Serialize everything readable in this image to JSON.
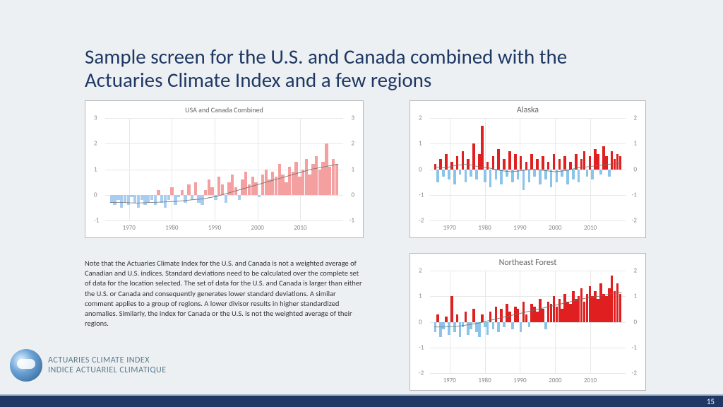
{
  "title": "Sample screen for the U.S. and Canada combined with the Actuaries Climate Index and a few regions",
  "note": "Note that the Actuaries Climate Index for the U.S. and Canada is not a weighted average of Canadian and U.S. indices. Standard deviations need to be calculated over the complete set of data for the location selected. The set of data for the U.S. and Canada is larger than either the U.S. or Canada and consequently generates lower standard deviations. A similar comment applies to a group of regions. A lower divisor results in higher standardized anomalies. Similarly, the index for Canada or the U.S. is not the weighted average of their regions.",
  "logo": {
    "line1": "ACTUARIES CLIMATE INDEX",
    "line2": "INDICE ACTUARIEL CLIMATIQUE"
  },
  "page_num": "15",
  "colors": {
    "pos_main": "#f4a0a0",
    "neg_main": "#a8cdf0",
    "pos_reg": "#e02020",
    "neg_reg": "#8ac4e8",
    "trend": "#707070"
  },
  "charts": {
    "main": {
      "title": "USA and Canada Combined",
      "ylim": [
        -1,
        3
      ],
      "yticks": [
        -1,
        0,
        1,
        2,
        3
      ],
      "xticks": [
        {
          "p": 10,
          "l": "1970"
        },
        {
          "p": 28,
          "l": "1980"
        },
        {
          "p": 46,
          "l": "1990"
        },
        {
          "p": 64,
          "l": "2000"
        },
        {
          "p": 82,
          "l": "2010"
        }
      ],
      "bars": [
        -0.3,
        -0.4,
        -0.2,
        -0.5,
        -0.3,
        -0.4,
        -0.1,
        -0.3,
        -0.5,
        -0.2,
        -0.4,
        -0.3,
        -0.2,
        -0.4,
        0.2,
        -0.3,
        -0.5,
        -0.2,
        0.3,
        -0.4,
        -0.1,
        0.2,
        -0.3,
        0.4,
        -0.2,
        0.5,
        -0.3,
        -0.4,
        0.2,
        0.6,
        0.3,
        -0.2,
        0.7,
        0.4,
        -0.3,
        0.5,
        0.8,
        0.3,
        -0.2,
        0.6,
        0.9,
        0.4,
        0.7,
        0.5,
        -0.1,
        0.8,
        1.0,
        0.6,
        0.9,
        0.7,
        1.2,
        0.8,
        0.5,
        1.1,
        0.9,
        1.3,
        0.7,
        1.0,
        1.4,
        0.8,
        1.2,
        1.5,
        1.0,
        1.3,
        2.0,
        1.1,
        1.4,
        1.2
      ],
      "trend": [
        -0.3,
        -0.3,
        -0.32,
        -0.3,
        -0.28,
        -0.25,
        -0.2,
        -0.15,
        -0.05,
        0.1,
        0.25,
        0.4,
        0.55,
        0.7,
        0.85,
        1.0,
        1.1,
        1.2
      ]
    },
    "alaska": {
      "title": "Alaska",
      "ylim": [
        -2,
        2
      ],
      "yticks": [
        -2,
        -1,
        0,
        1,
        2
      ],
      "xticks": [
        {
          "p": 10,
          "l": "1970"
        },
        {
          "p": 28,
          "l": "1980"
        },
        {
          "p": 46,
          "l": "1990"
        },
        {
          "p": 64,
          "l": "2000"
        },
        {
          "p": 82,
          "l": "2010"
        }
      ],
      "bars": [
        0.2,
        -0.5,
        0.4,
        -0.3,
        0.6,
        -0.4,
        0.3,
        -0.6,
        0.5,
        -0.2,
        0.7,
        -0.5,
        0.4,
        -0.3,
        1.0,
        -0.4,
        0.6,
        1.7,
        -0.5,
        0.3,
        -0.7,
        0.5,
        -0.4,
        0.8,
        -0.6,
        0.4,
        -0.3,
        0.7,
        -0.5,
        0.6,
        -0.4,
        0.5,
        -0.8,
        0.3,
        -0.5,
        0.6,
        -0.3,
        0.4,
        -0.6,
        0.5,
        -0.4,
        0.3,
        -0.7,
        0.6,
        -0.5,
        0.4,
        -0.3,
        0.5,
        -0.6,
        0.3,
        -0.4,
        0.6,
        -0.5,
        0.4,
        0.7,
        -0.3,
        0.5,
        -0.4,
        0.8,
        0.6,
        -0.2,
        0.9,
        0.5,
        -0.3,
        0.7,
        0.4,
        0.6,
        0.5
      ],
      "trend": [
        0.1,
        0.05,
        0.15,
        0.2,
        0.1,
        0.05,
        -0.05,
        -0.1,
        -0.05,
        0,
        -0.05,
        -0.1,
        -0.05,
        0.05,
        0.1,
        0.15,
        0.2,
        0.25
      ]
    },
    "nef": {
      "title": "Northeast Forest",
      "ylim": [
        -2,
        2
      ],
      "yticks": [
        -2,
        -1,
        0,
        1,
        2
      ],
      "xticks": [
        {
          "p": 10,
          "l": "1970"
        },
        {
          "p": 28,
          "l": "1980"
        },
        {
          "p": 46,
          "l": "1990"
        },
        {
          "p": 64,
          "l": "2000"
        },
        {
          "p": 82,
          "l": "2010"
        }
      ],
      "bars": [
        -0.4,
        0.3,
        -0.6,
        -0.3,
        0.2,
        -0.5,
        1.0,
        -0.4,
        0.3,
        -0.6,
        -0.2,
        0.4,
        -0.5,
        -0.3,
        0.5,
        -0.4,
        -0.6,
        0.3,
        -0.2,
        -0.5,
        0.4,
        -0.3,
        0.6,
        -0.4,
        0.5,
        -0.2,
        0.7,
        0.4,
        -0.3,
        0.6,
        0.5,
        -0.4,
        0.8,
        0.3,
        -0.2,
        0.7,
        0.6,
        0.4,
        0.9,
        0.5,
        -0.3,
        0.8,
        0.7,
        1.0,
        0.6,
        0.9,
        0.5,
        1.1,
        0.8,
        0.7,
        1.2,
        0.9,
        1.0,
        1.3,
        0.8,
        1.1,
        1.4,
        1.0,
        1.2,
        0.9,
        1.5,
        1.1,
        1.0,
        1.3,
        1.8,
        1.2,
        1.5,
        1.1
      ],
      "trend": [
        -0.2,
        -0.2,
        -0.18,
        -0.12,
        -0.05,
        0.05,
        0.15,
        0.25,
        0.35,
        0.45,
        0.55,
        0.65,
        0.75,
        0.85,
        0.95,
        1.0,
        1.1,
        1.15
      ]
    }
  }
}
